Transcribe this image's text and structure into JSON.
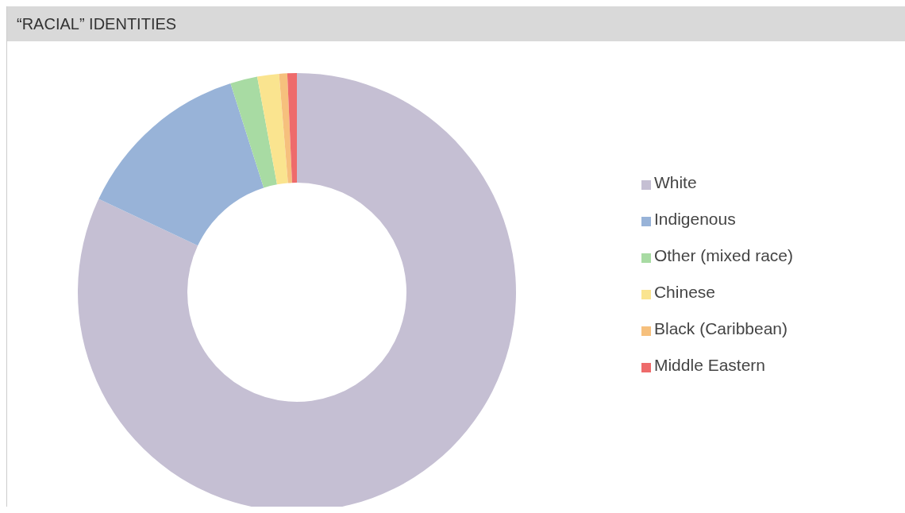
{
  "chart_data": {
    "type": "donut",
    "title": "“RACIAL” IDENTITIES",
    "categories": [
      "White",
      "Indigenous",
      "Other (mixed race)",
      "Chinese",
      "Black (Caribbean)",
      "Middle Eastern"
    ],
    "values": [
      82.0,
      13.1,
      2.0,
      1.6,
      0.6,
      0.7
    ],
    "colors": [
      "#c5bfd3",
      "#98b3d8",
      "#a8dba3",
      "#fae48f",
      "#f6c07d",
      "#ee6b6b"
    ],
    "legend": "right"
  }
}
